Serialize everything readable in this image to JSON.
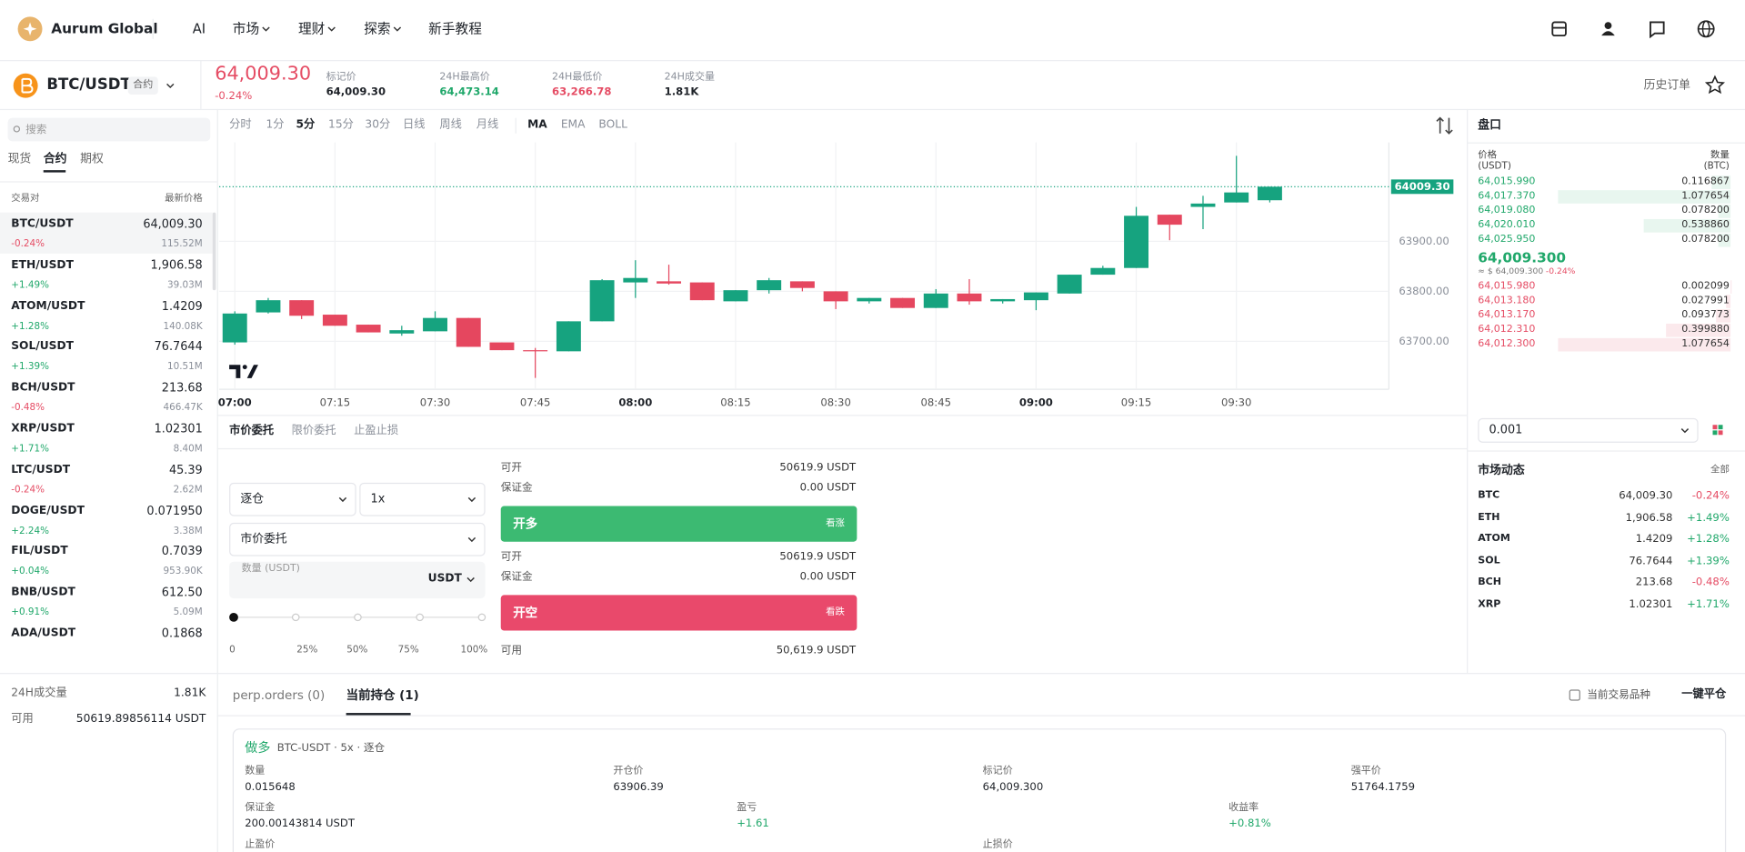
{
  "header": {
    "brand": "Aurum Global",
    "nav": [
      "AI",
      "市场",
      "理财",
      "探索",
      "新手教程"
    ]
  },
  "ticker": {
    "symbol": "BTC/USDT",
    "badge": "合约",
    "price": "64,009.30",
    "change": "-0.24%",
    "stats": [
      {
        "label": "标记价",
        "value": "64,009.30"
      },
      {
        "label": "24H最高价",
        "value": "64,473.14"
      },
      {
        "label": "24H最低价",
        "value": "63,266.78"
      },
      {
        "label": "24H成交量",
        "value": "1.81K"
      }
    ],
    "history": "历史订单"
  },
  "sidebar": {
    "search": "搜索",
    "tabs": [
      "现货",
      "合约",
      "期权"
    ],
    "columns": [
      "交易对",
      "最新价格"
    ],
    "pairs": [
      {
        "name": "BTC/USDT",
        "price": "64,009.30",
        "change": "-0.24%",
        "volume": "115.52M"
      },
      {
        "name": "ETH/USDT",
        "price": "1,906.58",
        "change": "+1.49%",
        "volume": "39.03M"
      },
      {
        "name": "ATOM/USDT",
        "price": "1.4209",
        "change": "+1.28%",
        "volume": "140.08K"
      },
      {
        "name": "SOL/USDT",
        "price": "76.7644",
        "change": "+1.39%",
        "volume": "10.51M"
      },
      {
        "name": "BCH/USDT",
        "price": "213.68",
        "change": "-0.48%",
        "volume": "466.47K"
      },
      {
        "name": "XRP/USDT",
        "price": "1.02301",
        "change": "+1.71%",
        "volume": "8.40M"
      },
      {
        "name": "LTC/USDT",
        "price": "45.39",
        "change": "-0.24%",
        "volume": "2.62M"
      },
      {
        "name": "DOGE/USDT",
        "price": "0.071950",
        "change": "+2.24%",
        "volume": "3.38M"
      },
      {
        "name": "FIL/USDT",
        "price": "0.7039",
        "change": "+0.04%",
        "volume": "953.90K"
      },
      {
        "name": "BNB/USDT",
        "price": "612.50",
        "change": "+0.91%",
        "volume": "5.09M"
      },
      {
        "name": "ADA/USDT",
        "price": "0.1868"
      }
    ],
    "footer": [
      {
        "label": "24H成交量",
        "value": "1.81K"
      },
      {
        "label": "可用",
        "value": "50619.89856114 USDT"
      }
    ]
  },
  "toolbar": {
    "intervals": [
      "分时",
      "1分",
      "5分",
      "15分",
      "30分",
      "日线",
      "周线",
      "月线"
    ],
    "indicators": [
      "MA",
      "EMA",
      "BOLL"
    ]
  },
  "chart_data": {
    "type": "candlestick",
    "up_color": "#16a37f",
    "down_color": "#e5475f",
    "grid": true,
    "categories": [
      "07:00",
      null,
      null,
      "07:15",
      null,
      null,
      "07:30",
      null,
      null,
      "07:45",
      null,
      null,
      "08:00",
      null,
      null,
      "08:15",
      null,
      null,
      "08:30",
      null,
      null,
      "08:45",
      null,
      null,
      "09:00",
      null,
      null,
      "09:15",
      null,
      null,
      "09:30",
      null
    ],
    "open": [
      63697.8,
      63757.8,
      63782.2,
      63753.3,
      63733.3,
      63715.6,
      63720,
      63746.7,
      63697.8,
      63682.2,
      63680,
      63740,
      63817.8,
      63820,
      63817.8,
      63780,
      63802.2,
      63820,
      63800,
      63780,
      63786.7,
      63766.7,
      63795.6,
      63780,
      63782.2,
      63795.6,
      63833.3,
      63846.7,
      63953.3,
      63968.9,
      63977.8,
      63982.2
    ],
    "high": [
      63760,
      63786.7,
      63782.2,
      63753.3,
      63733.3,
      63731.1,
      63760,
      63746.7,
      63697.8,
      63686.7,
      63740,
      63824.4,
      63862.2,
      63853.3,
      63817.8,
      63802.2,
      63826.7,
      63820,
      63800,
      63786.7,
      63786.7,
      63804.4,
      63824.4,
      63784.4,
      63797.8,
      63833.3,
      63851.1,
      63968.9,
      63953.3,
      63991.1,
      64071.1,
      64009.3
    ],
    "low": [
      63693.3,
      63755.6,
      63744.4,
      63731.1,
      63717.8,
      63711.1,
      63720,
      63688.9,
      63682.2,
      63626.7,
      63680,
      63740,
      63786.7,
      63813.3,
      63782.2,
      63780,
      63795.6,
      63800,
      63764.4,
      63775.6,
      63766.7,
      63766.7,
      63773.3,
      63775.6,
      63762.2,
      63795.6,
      63833.3,
      63846.7,
      63902.2,
      63924.4,
      63977.8,
      63977.8
    ],
    "close": [
      63755.6,
      63782.2,
      63751.1,
      63731.1,
      63717.8,
      63722.2,
      63746.7,
      63688.9,
      63682.2,
      63680,
      63740,
      63822.2,
      63826.7,
      63815.6,
      63782.2,
      63802.2,
      63822.2,
      63806.7,
      63780,
      63786.7,
      63766.7,
      63795.6,
      63780,
      63784.4,
      63797.8,
      63833.3,
      63846.7,
      63951.1,
      63933.3,
      63975.6,
      63997.8,
      64009.3
    ],
    "ylim": [
      63604,
      64098
    ],
    "yticks": [
      {
        "value": 63700,
        "label": "63700.00"
      },
      {
        "value": 63800,
        "label": "63800.00"
      },
      {
        "value": 63900,
        "label": "63900.00"
      }
    ],
    "last_price": {
      "value": 64009.3,
      "label": "64009.30"
    }
  },
  "order_form": {
    "tabs": [
      "市价委托",
      "限价委托",
      "止盈止损"
    ],
    "margin_mode": "逐仓",
    "leverage": "1x",
    "order_type": "市价委托",
    "amount_placeholder": "数量 (USDT)",
    "amount_unit": "USDT",
    "slider_labels": [
      "0",
      "25%",
      "50%",
      "75%",
      "100%"
    ],
    "long": {
      "rows": [
        {
          "label": "可开",
          "value": "50619.9 USDT"
        },
        {
          "label": "保证金",
          "value": "0.00 USDT"
        }
      ],
      "button": "开多",
      "hint": "看涨"
    },
    "short": {
      "rows": [
        {
          "label": "可开",
          "value": "50619.9 USDT"
        },
        {
          "label": "保证金",
          "value": "0.00 USDT"
        }
      ],
      "button": "开空",
      "hint": "看跌"
    },
    "available": {
      "label": "可用",
      "value": "50,619.9 USDT"
    }
  },
  "order_book": {
    "title": "盘口",
    "price_header": [
      "价格",
      "(USDT)"
    ],
    "qty_header": [
      "数量",
      "(BTC)"
    ],
    "asks": {
      "prices": [
        "64,015.990",
        "64,017.370",
        "64,019.080",
        "64,020.010",
        "64,025.950"
      ],
      "quantities": [
        0.116867,
        1.077654,
        0.0782,
        0.53886,
        0.0782
      ],
      "quantity_labels": [
        "0.116867",
        "1.077654",
        "0.078200",
        "0.538860",
        "0.078200"
      ]
    },
    "mid": {
      "price": "64,009.300",
      "usd": "≈ $ 64,009.300",
      "change": "-0.24%"
    },
    "bids": {
      "prices": [
        "64,015.980",
        "64,013.180",
        "64,013.170",
        "64,012.310",
        "64,012.300"
      ],
      "quantities": [
        0.002099,
        0.027991,
        0.093773,
        0.39988,
        1.077654
      ],
      "quantity_labels": [
        "0.002099",
        "0.027991",
        "0.093773",
        "0.399880",
        "1.077654"
      ]
    },
    "precision": "0.001"
  },
  "market": {
    "title": "市场动态",
    "all": "全部",
    "rows": [
      {
        "symbol": "BTC",
        "price": "64,009.30",
        "change": "-0.24%"
      },
      {
        "symbol": "ETH",
        "price": "1,906.58",
        "change": "+1.49%"
      },
      {
        "symbol": "ATOM",
        "price": "1.4209",
        "change": "+1.28%"
      },
      {
        "symbol": "SOL",
        "price": "76.7644",
        "change": "+1.39%"
      },
      {
        "symbol": "BCH",
        "price": "213.68",
        "change": "-0.48%"
      },
      {
        "symbol": "XRP",
        "price": "1.02301",
        "change": "+1.71%"
      }
    ]
  },
  "positions": {
    "tabs": [
      "perp.orders (0)",
      "当前持仓 (1)"
    ],
    "filter": "当前交易品种",
    "close_all": "一键平仓",
    "card": {
      "side": "做多",
      "desc": "BTC-USDT · 5x · 逐仓",
      "fields": [
        {
          "label": "数量",
          "value": "0.015648"
        },
        {
          "label": "开仓价",
          "value": "63906.39"
        },
        {
          "label": "标记价",
          "value": "64,009.300"
        },
        {
          "label": "强平价",
          "value": "51764.1759"
        },
        {
          "label": "保证金",
          "value": "200.00143814 USDT"
        },
        {
          "label": "盈亏",
          "value": "+1.61"
        },
        {
          "label": "收益率",
          "value": "+0.81%"
        },
        {
          "label": "止盈价"
        },
        {
          "label": "止损价"
        }
      ]
    }
  }
}
